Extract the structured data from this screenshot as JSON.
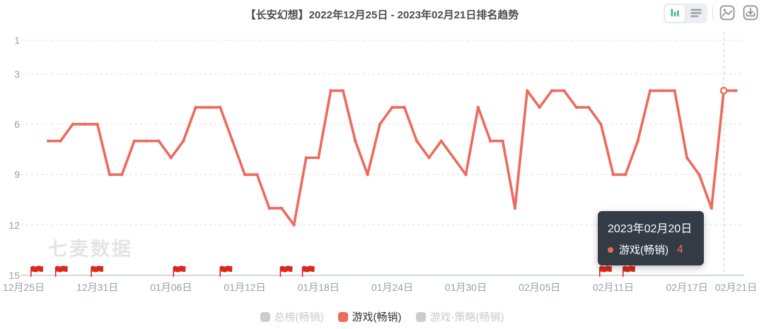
{
  "header": {
    "title": "【长安幻想】2022年12月25日 - 2023年02月21日排名趋势",
    "icons": {
      "chart_view_toggle": "bar-chart",
      "list_view_toggle": "list-lines",
      "export_image": "picture",
      "download": "download-tray"
    }
  },
  "watermark": "七麦数据",
  "chart_data": {
    "type": "line",
    "title": "【长安幻想】2022年12月25日 - 2023年02月21日排名趋势",
    "x_axis": {
      "range_days": 58,
      "tick_labels": [
        "12月25日",
        "12月31日",
        "01月06日",
        "01月12日",
        "01月18日",
        "01月24日",
        "01月30日",
        "02月05日",
        "02月11日",
        "02月17日",
        "02月21日"
      ],
      "tick_day_offsets": [
        0,
        6,
        12,
        18,
        24,
        30,
        36,
        42,
        48,
        54,
        58
      ]
    },
    "y_axis": {
      "ticks": [
        1,
        3,
        6,
        9,
        12,
        15
      ],
      "inverted": true,
      "min": 1,
      "max": 15,
      "grid": "dashed"
    },
    "series": [
      {
        "name": "游戏(畅销)",
        "color": "#ec6b5c",
        "start_day_offset": 2,
        "dates": [
          "12月27日",
          "12月28日",
          "12月29日",
          "12月30日",
          "12月31日",
          "01月01日",
          "01月02日",
          "01月03日",
          "01月04日",
          "01月05日",
          "01月06日",
          "01月07日",
          "01月08日",
          "01月09日",
          "01月10日",
          "01月11日",
          "01月12日",
          "01月13日",
          "01月14日",
          "01月15日",
          "01月16日",
          "01月17日",
          "01月18日",
          "01月19日",
          "01月20日",
          "01月21日",
          "01月22日",
          "01月23日",
          "01月24日",
          "01月25日",
          "01月26日",
          "01月27日",
          "01月28日",
          "01月29日",
          "01月30日",
          "01月31日",
          "02月01日",
          "02月02日",
          "02月03日",
          "02月04日",
          "02月05日",
          "02月06日",
          "02月07日",
          "02月08日",
          "02月09日",
          "02月10日",
          "02月11日",
          "02月12日",
          "02月13日",
          "02月14日",
          "02月15日",
          "02月16日",
          "02月17日",
          "02月18日",
          "02月19日",
          "02月20日",
          "02月21日"
        ],
        "values": [
          7,
          7,
          6,
          6,
          6,
          9,
          9,
          7,
          7,
          7,
          8,
          7,
          5,
          5,
          5,
          7,
          9,
          9,
          11,
          11,
          12,
          8,
          8,
          4,
          4,
          7,
          9,
          6,
          5,
          5,
          7,
          8,
          7,
          8,
          9,
          5,
          7,
          7,
          11,
          4,
          5,
          4,
          4,
          5,
          5,
          6,
          9,
          9,
          7,
          4,
          4,
          4,
          8,
          9,
          11,
          4,
          4
        ]
      }
    ],
    "legend": [
      {
        "label": "总榜(畅销)",
        "active": false
      },
      {
        "label": "游戏(畅销)",
        "active": true,
        "color": "#ec6b5c"
      },
      {
        "label": "游戏-策略(畅销)",
        "active": false
      }
    ],
    "legend_position": "bottom"
  },
  "flags": {
    "meaning": "version-update-flag",
    "day_offsets": [
      0.6,
      2.6,
      5.5,
      12.2,
      16,
      20.9,
      22.7,
      46.9,
      48.8
    ]
  },
  "tooltip": {
    "date": "2023年02月20日",
    "series_label": "游戏(畅销)",
    "value": "4",
    "day_offset": 57
  },
  "colors": {
    "accent": "#ec6b5c",
    "flag_red": "#d9281c",
    "tooltip_bg": "#2b333d",
    "grid_line": "#dedede",
    "axis_line": "#aab0b6",
    "axis_label": "#9aa0a6",
    "crosshair": "#c8cbcf",
    "legend_inactive_swatch": "#c9cdd2",
    "legend_inactive_text": "#c7cacf",
    "legend_active_text": "#333333",
    "toggle_green": "#45b97c",
    "icon_gray": "#8a9099",
    "watermark": "#e4e4e5"
  }
}
